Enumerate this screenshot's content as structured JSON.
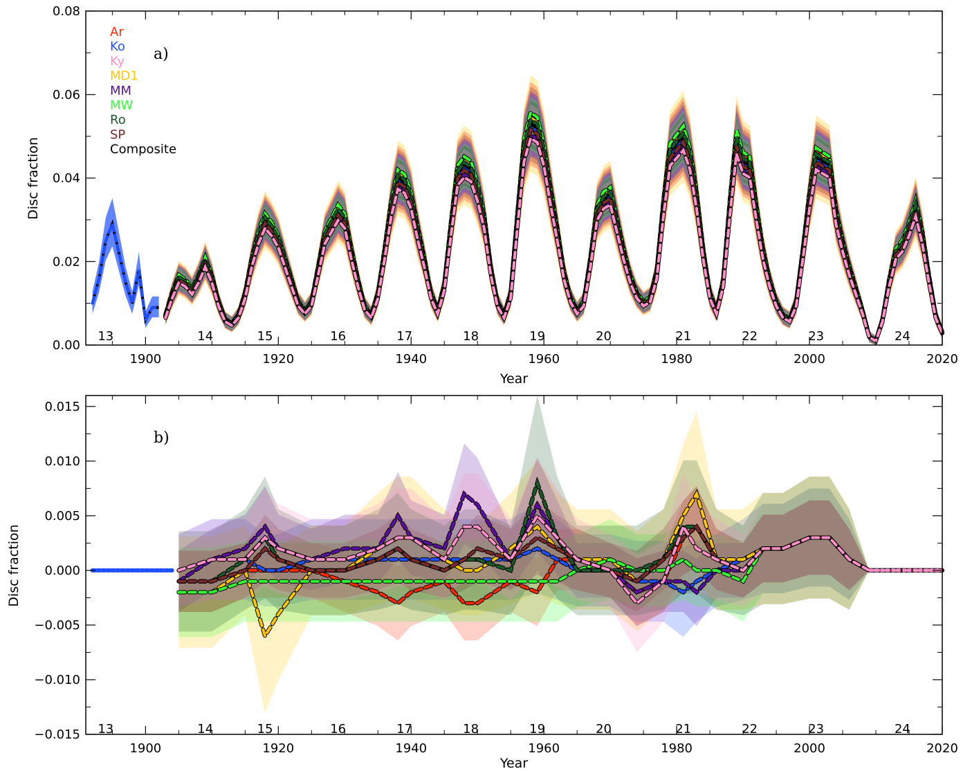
{
  "chart_data": [
    {
      "panel_label": "a)",
      "type": "line",
      "xlabel": "Year",
      "ylabel": "Disc fraction",
      "xlim": [
        1891,
        2020
      ],
      "ylim": [
        0.0,
        0.08
      ],
      "xticks": [
        1900,
        1920,
        1940,
        1960,
        1980,
        2000,
        2020
      ],
      "yticks": [
        0.0,
        0.02,
        0.04,
        0.06,
        0.08
      ],
      "ytick_labels": [
        "0.00",
        "0.02",
        "0.04",
        "0.06",
        "0.08"
      ],
      "grid": false,
      "legend_placement": "top-left",
      "legend": [
        {
          "label": "Ar",
          "color": "#ff2a00"
        },
        {
          "label": "Ko",
          "color": "#1f50ff"
        },
        {
          "label": "Ky",
          "color": "#ff8fc8"
        },
        {
          "label": "MD1",
          "color": "#ffc800"
        },
        {
          "label": "MM",
          "color": "#5a0fa0"
        },
        {
          "label": "MW",
          "color": "#33ff33"
        },
        {
          "label": "Ro",
          "color": "#1a5a2a"
        },
        {
          "label": "SP",
          "color": "#7a2a2a"
        },
        {
          "label": "Composite",
          "color": "#000000"
        }
      ],
      "cycle_labels": [
        {
          "label": "13",
          "x": 1894
        },
        {
          "label": "14",
          "x": 1909
        },
        {
          "label": "15",
          "x": 1918
        },
        {
          "label": "16",
          "x": 1929
        },
        {
          "label": "17",
          "x": 1939
        },
        {
          "label": "18",
          "x": 1949
        },
        {
          "label": "19",
          "x": 1959
        },
        {
          "label": "20",
          "x": 1969
        },
        {
          "label": "21",
          "x": 1981
        },
        {
          "label": "22",
          "x": 1991
        },
        {
          "label": "23",
          "x": 2001
        },
        {
          "label": "24",
          "x": 2014
        }
      ],
      "composite_x": [
        1892,
        1893,
        1894,
        1895,
        1896,
        1897,
        1898,
        1899,
        1900,
        1901,
        1902,
        1903,
        1904,
        1905,
        1906,
        1907,
        1908,
        1909,
        1910,
        1911,
        1912,
        1913,
        1914,
        1915,
        1916,
        1917,
        1918,
        1919,
        1920,
        1921,
        1922,
        1923,
        1924,
        1925,
        1926,
        1927,
        1928,
        1929,
        1930,
        1931,
        1932,
        1933,
        1934,
        1935,
        1936,
        1937,
        1938,
        1939,
        1940,
        1941,
        1942,
        1943,
        1944,
        1945,
        1946,
        1947,
        1948,
        1949,
        1950,
        1951,
        1952,
        1953,
        1954,
        1955,
        1956,
        1957,
        1958,
        1959,
        1960,
        1961,
        1962,
        1963,
        1964,
        1965,
        1966,
        1967,
        1968,
        1969,
        1970,
        1971,
        1972,
        1973,
        1974,
        1975,
        1976,
        1977,
        1978,
        1979,
        1980,
        1981,
        1982,
        1983,
        1984,
        1985,
        1986,
        1987,
        1988,
        1989,
        1990,
        1991,
        1992,
        1993,
        1994,
        1995,
        1996,
        1997,
        1998,
        1999,
        2000,
        2001,
        2002,
        2003,
        2004,
        2005,
        2006,
        2007,
        2008,
        2009,
        2010,
        2011,
        2012,
        2013,
        2014,
        2015,
        2016,
        2017,
        2018,
        2019,
        2020
      ],
      "composite_y": [
        0.01,
        0.016,
        0.025,
        0.029,
        0.022,
        0.015,
        0.01,
        0.018,
        0.006,
        0.009,
        0.009,
        0.007,
        0.012,
        0.016,
        0.015,
        0.013,
        0.016,
        0.02,
        0.016,
        0.01,
        0.006,
        0.005,
        0.007,
        0.012,
        0.02,
        0.026,
        0.03,
        0.028,
        0.025,
        0.02,
        0.015,
        0.01,
        0.008,
        0.01,
        0.018,
        0.026,
        0.029,
        0.032,
        0.03,
        0.022,
        0.015,
        0.009,
        0.007,
        0.012,
        0.022,
        0.033,
        0.04,
        0.039,
        0.035,
        0.027,
        0.02,
        0.012,
        0.008,
        0.014,
        0.028,
        0.041,
        0.043,
        0.042,
        0.037,
        0.03,
        0.018,
        0.01,
        0.007,
        0.012,
        0.03,
        0.047,
        0.053,
        0.052,
        0.046,
        0.036,
        0.027,
        0.017,
        0.011,
        0.008,
        0.01,
        0.02,
        0.032,
        0.035,
        0.036,
        0.029,
        0.022,
        0.016,
        0.012,
        0.01,
        0.011,
        0.017,
        0.033,
        0.046,
        0.048,
        0.05,
        0.045,
        0.035,
        0.022,
        0.012,
        0.008,
        0.015,
        0.033,
        0.049,
        0.044,
        0.043,
        0.032,
        0.022,
        0.015,
        0.01,
        0.007,
        0.006,
        0.01,
        0.022,
        0.035,
        0.045,
        0.044,
        0.043,
        0.031,
        0.024,
        0.018,
        0.013,
        0.008,
        0.002,
        0.001,
        0.006,
        0.015,
        0.022,
        0.024,
        0.028,
        0.033,
        0.026,
        0.016,
        0.007,
        0.003
      ]
    },
    {
      "panel_label": "b)",
      "type": "line",
      "xlabel": "Year",
      "ylabel": "Disc fraction",
      "xlim": [
        1891,
        2020
      ],
      "ylim": [
        -0.015,
        0.016
      ],
      "xticks": [
        1900,
        1920,
        1940,
        1960,
        1980,
        2000,
        2020
      ],
      "yticks": [
        -0.015,
        -0.01,
        -0.005,
        0.0,
        0.005,
        0.01,
        0.015
      ],
      "ytick_labels": [
        "−0.015",
        "−0.010",
        "−0.005",
        "0.000",
        "0.005",
        "0.010",
        "0.015"
      ],
      "grid": false,
      "cycle_labels": [
        {
          "label": "13",
          "x": 1894
        },
        {
          "label": "14",
          "x": 1909
        },
        {
          "label": "15",
          "x": 1918
        },
        {
          "label": "16",
          "x": 1929
        },
        {
          "label": "17",
          "x": 1939
        },
        {
          "label": "18",
          "x": 1949
        },
        {
          "label": "19",
          "x": 1959
        },
        {
          "label": "20",
          "x": 1969
        },
        {
          "label": "21",
          "x": 1981
        },
        {
          "label": "22",
          "x": 1991
        },
        {
          "label": "23",
          "x": 2001
        },
        {
          "label": "24",
          "x": 2014
        }
      ],
      "x": [
        1905,
        1910,
        1915,
        1918,
        1920,
        1925,
        1930,
        1935,
        1938,
        1940,
        1945,
        1948,
        1950,
        1955,
        1959,
        1962,
        1965,
        1970,
        1974,
        1978,
        1981,
        1983,
        1986,
        1990,
        1993,
        1996,
        2000,
        2003,
        2006,
        2009,
        2015,
        2020
      ],
      "series": [
        {
          "name": "Ar",
          "color": "#ff2a00",
          "values": [
            -0.001,
            -0.001,
            0.0,
            0.0,
            0.0,
            0.0,
            -0.001,
            -0.002,
            -0.003,
            -0.002,
            -0.001,
            -0.003,
            -0.003,
            -0.001,
            -0.002,
            0.001,
            0.001,
            0.0,
            -0.002,
            -0.001,
            0.003,
            0.004,
            0.001,
            0.0,
            0.002,
            0.002,
            0.003,
            0.003,
            0.001,
            0.0,
            0.0,
            0.0
          ]
        },
        {
          "name": "Ko",
          "color": "#1f50ff",
          "values": [
            0.0,
            0.001,
            0.001,
            0.0,
            0.0,
            0.001,
            0.001,
            0.001,
            0.001,
            0.001,
            0.001,
            0.001,
            0.001,
            0.001,
            0.002,
            0.001,
            0.0,
            0.0,
            -0.001,
            -0.001,
            -0.002,
            -0.001,
            0.0,
            0.001,
            0.002,
            0.002,
            0.003,
            0.003,
            0.001,
            0.0,
            0.0,
            0.0
          ]
        },
        {
          "name": "MD1",
          "color": "#ffc800",
          "values": [
            -0.002,
            -0.002,
            0.0,
            -0.006,
            -0.004,
            0.0,
            0.0,
            0.002,
            0.003,
            0.003,
            0.001,
            0.0,
            0.0,
            0.002,
            0.004,
            0.002,
            0.001,
            0.001,
            -0.001,
            0.001,
            0.005,
            0.007,
            0.001,
            0.001,
            0.002,
            0.002,
            0.003,
            0.003,
            0.001,
            0.0,
            0.0,
            0.0
          ]
        },
        {
          "name": "MM",
          "color": "#5a0fa0",
          "values": [
            -0.001,
            0.001,
            0.002,
            0.004,
            0.002,
            0.001,
            0.002,
            0.002,
            0.005,
            0.003,
            0.002,
            0.007,
            0.006,
            0.001,
            0.006,
            0.003,
            0.0,
            0.0,
            -0.002,
            -0.001,
            -0.001,
            -0.002,
            0.0,
            0.0,
            0.002,
            0.002,
            0.003,
            0.003,
            0.001,
            0.0,
            0.0,
            0.0
          ]
        },
        {
          "name": "MW",
          "color": "#33ff33",
          "values": [
            -0.002,
            -0.002,
            -0.001,
            -0.001,
            -0.001,
            -0.001,
            -0.001,
            -0.001,
            -0.001,
            -0.001,
            -0.001,
            -0.001,
            -0.001,
            -0.001,
            -0.001,
            -0.001,
            0.0,
            0.001,
            0.0,
            0.0,
            0.001,
            0.0,
            0.0,
            -0.001,
            0.002,
            0.002,
            0.003,
            0.003,
            0.001,
            0.0,
            0.0,
            0.0
          ]
        },
        {
          "name": "Ro",
          "color": "#1a5a2a",
          "values": [
            -0.001,
            -0.001,
            0.001,
            0.003,
            0.001,
            0.0,
            0.0,
            0.001,
            0.002,
            0.001,
            0.0,
            0.001,
            0.001,
            0.0,
            0.008,
            0.003,
            0.0,
            0.0,
            0.0,
            0.001,
            0.004,
            0.004,
            0.001,
            0.0,
            0.002,
            0.002,
            0.003,
            0.003,
            0.001,
            0.0,
            0.0,
            0.0
          ]
        },
        {
          "name": "SP",
          "color": "#7a2a2a",
          "values": [
            -0.001,
            -0.001,
            0.0,
            0.002,
            0.001,
            0.0,
            0.0,
            0.001,
            0.002,
            0.001,
            0.0,
            0.001,
            0.002,
            0.001,
            0.003,
            0.002,
            0.001,
            0.0,
            -0.001,
            0.001,
            0.003,
            0.004,
            0.001,
            0.0,
            0.002,
            0.002,
            0.003,
            0.003,
            0.001,
            0.0,
            0.0,
            0.0
          ]
        },
        {
          "name": "Ky",
          "color": "#ff8fc8",
          "values": [
            0.0,
            0.001,
            0.001,
            0.003,
            0.002,
            0.001,
            0.001,
            0.002,
            0.003,
            0.003,
            0.001,
            0.004,
            0.004,
            0.001,
            0.005,
            0.003,
            0.001,
            0.0,
            -0.003,
            -0.001,
            0.004,
            0.002,
            0.001,
            0.0,
            0.002,
            0.002,
            0.003,
            0.003,
            0.001,
            0.0,
            0.0,
            0.0
          ]
        }
      ]
    }
  ]
}
